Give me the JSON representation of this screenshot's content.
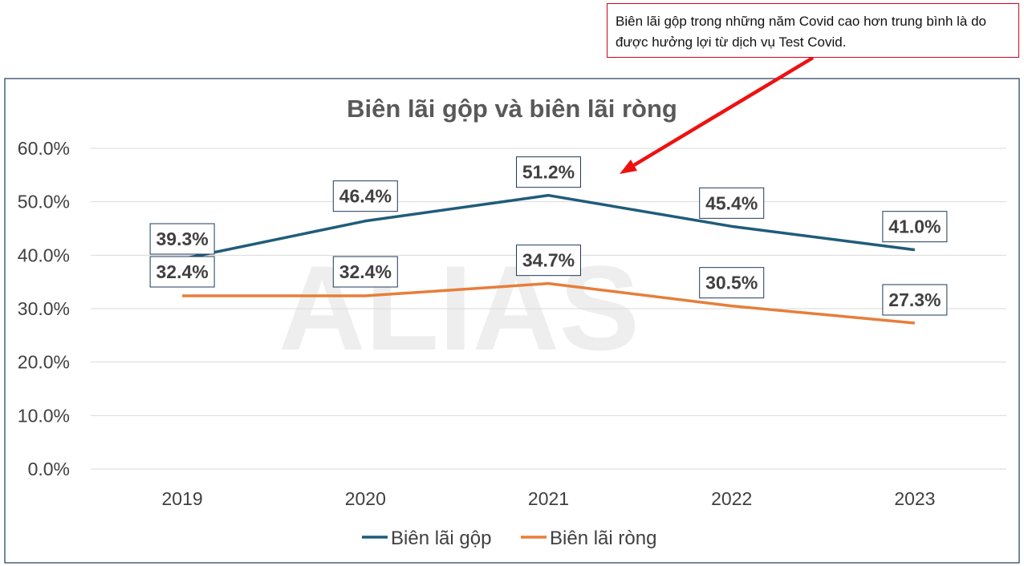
{
  "annotation": {
    "text": "Biên lãi gộp trong những năm Covid cao hơn trung bình là do được hưởng lợi từ dịch vụ Test Covid."
  },
  "watermark": "ALIAS",
  "colors": {
    "gross": "#1f5c7a",
    "net": "#e67e3a",
    "arrow": "#ee1111",
    "text": "#404040",
    "label_border": "#1f3a5a",
    "grid": "#d9d9d9",
    "frame": "#1f3a5a"
  },
  "chart_data": {
    "type": "line",
    "title": "Biên lãi gộp và biên lãi ròng",
    "categories": [
      "2019",
      "2020",
      "2021",
      "2022",
      "2023"
    ],
    "series": [
      {
        "name": "Biên lãi gộp",
        "values": [
          39.3,
          46.4,
          51.2,
          45.4,
          41.0
        ],
        "labels": [
          "39.3%",
          "46.4%",
          "51.2%",
          "45.4%",
          "41.0%"
        ]
      },
      {
        "name": "Biên lãi ròng",
        "values": [
          32.4,
          32.4,
          34.7,
          30.5,
          27.3
        ],
        "labels": [
          "32.4%",
          "32.4%",
          "34.7%",
          "30.5%",
          "27.3%"
        ]
      }
    ],
    "yticks": [
      "0.0%",
      "10.0%",
      "20.0%",
      "30.0%",
      "40.0%",
      "50.0%",
      "60.0%"
    ],
    "ylim": [
      0,
      60
    ],
    "grid": true,
    "legend": "bottom"
  }
}
